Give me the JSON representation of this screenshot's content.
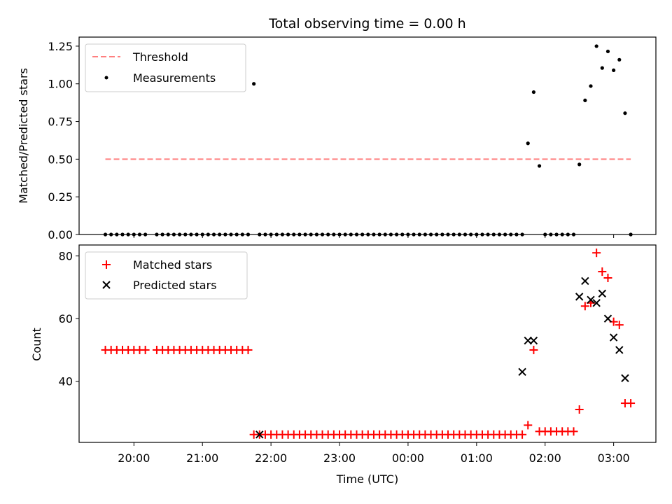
{
  "chart_data": [
    {
      "type": "scatter",
      "title": "Total observing time = 0.00 h",
      "ylabel": "Matched/Predicted stars",
      "ylim": [
        0,
        1.31
      ],
      "yticks": [
        "0.00",
        "0.25",
        "0.50",
        "0.75",
        "1.00",
        "1.25"
      ],
      "yticks_values": [
        0,
        0.25,
        0.5,
        0.75,
        1.0,
        1.25
      ],
      "legend_position": "upper-left",
      "threshold": {
        "name": "Threshold",
        "value": 0.5,
        "x_start": "19:35",
        "x_end": "03:15",
        "color": "#ff7f7f",
        "style": "dashed"
      },
      "series": [
        {
          "name": "Measurements",
          "color": "#000000",
          "marker": "dot",
          "x": [
            "19:35",
            "19:40",
            "19:45",
            "19:50",
            "19:55",
            "20:00",
            "20:05",
            "20:10",
            "20:20",
            "20:25",
            "20:30",
            "20:35",
            "20:40",
            "20:45",
            "20:50",
            "20:55",
            "21:00",
            "21:05",
            "21:10",
            "21:15",
            "21:20",
            "21:25",
            "21:30",
            "21:35",
            "21:40",
            "21:45",
            "21:50",
            "21:55",
            "22:00",
            "22:05",
            "22:10",
            "22:15",
            "22:20",
            "22:25",
            "22:30",
            "22:35",
            "22:40",
            "22:45",
            "22:50",
            "22:55",
            "23:00",
            "23:05",
            "23:10",
            "23:15",
            "23:20",
            "23:25",
            "23:30",
            "23:35",
            "23:40",
            "23:45",
            "23:50",
            "23:55",
            "00:00",
            "00:05",
            "00:10",
            "00:15",
            "00:20",
            "00:25",
            "00:30",
            "00:35",
            "00:40",
            "00:45",
            "00:50",
            "00:55",
            "01:00",
            "01:05",
            "01:10",
            "01:15",
            "01:20",
            "01:25",
            "01:30",
            "01:35",
            "01:40",
            "01:45",
            "01:50",
            "01:55",
            "02:00",
            "02:05",
            "02:10",
            "02:15",
            "02:20",
            "02:25",
            "02:30",
            "02:35",
            "02:40",
            "02:45",
            "02:50",
            "02:55",
            "03:00",
            "03:05",
            "03:10",
            "03:15"
          ],
          "y": [
            0,
            0,
            0,
            0,
            0,
            0,
            0,
            0,
            0,
            0,
            0,
            0,
            0,
            0,
            0,
            0,
            0,
            0,
            0,
            0,
            0,
            0,
            0,
            0,
            0,
            1.0,
            0,
            0,
            0,
            0,
            0,
            0,
            0,
            0,
            0,
            0,
            0,
            0,
            0,
            0,
            0,
            0,
            0,
            0,
            0,
            0,
            0,
            0,
            0,
            0,
            0,
            0,
            0,
            0,
            0,
            0,
            0,
            0,
            0,
            0,
            0,
            0,
            0,
            0,
            0,
            0,
            0,
            0,
            0,
            0,
            0,
            0,
            0,
            0.605,
            0.945,
            0.455,
            0,
            0,
            0,
            0,
            0,
            0,
            0.465,
            0.89,
            0.985,
            1.25,
            1.105,
            1.215,
            1.09,
            1.16,
            0.805,
            0
          ]
        }
      ]
    },
    {
      "type": "scatter",
      "xlabel": "Time (UTC)",
      "ylabel": "Count",
      "ylim": [
        20.5,
        83.5
      ],
      "yticks": [
        "40",
        "60",
        "80"
      ],
      "yticks_values": [
        40,
        60,
        80
      ],
      "xticks": [
        "20:00",
        "21:00",
        "22:00",
        "23:00",
        "00:00",
        "01:00",
        "02:00",
        "03:00"
      ],
      "xticks_values": [
        "20:00",
        "21:00",
        "22:00",
        "23:00",
        "00:00",
        "01:00",
        "02:00",
        "03:00"
      ],
      "legend_position": "upper-left",
      "series": [
        {
          "name": "Matched stars",
          "color": "#ff0000",
          "marker": "plus",
          "x": [
            "19:35",
            "19:40",
            "19:45",
            "19:50",
            "19:55",
            "20:00",
            "20:05",
            "20:10",
            "20:20",
            "20:25",
            "20:30",
            "20:35",
            "20:40",
            "20:45",
            "20:50",
            "20:55",
            "21:00",
            "21:05",
            "21:10",
            "21:15",
            "21:20",
            "21:25",
            "21:30",
            "21:35",
            "21:40",
            "21:45",
            "21:50",
            "21:55",
            "22:00",
            "22:05",
            "22:10",
            "22:15",
            "22:20",
            "22:25",
            "22:30",
            "22:35",
            "22:40",
            "22:45",
            "22:50",
            "22:55",
            "23:00",
            "23:05",
            "23:10",
            "23:15",
            "23:20",
            "23:25",
            "23:30",
            "23:35",
            "23:40",
            "23:45",
            "23:50",
            "23:55",
            "00:00",
            "00:05",
            "00:10",
            "00:15",
            "00:20",
            "00:25",
            "00:30",
            "00:35",
            "00:40",
            "00:45",
            "00:50",
            "00:55",
            "01:00",
            "01:05",
            "01:10",
            "01:15",
            "01:20",
            "01:25",
            "01:30",
            "01:35",
            "01:40",
            "01:45",
            "01:50",
            "01:55",
            "02:00",
            "02:05",
            "02:10",
            "02:15",
            "02:20",
            "02:25",
            "02:30",
            "02:35",
            "02:40",
            "02:45",
            "02:50",
            "02:55",
            "03:00",
            "03:05",
            "03:10",
            "03:15"
          ],
          "y": [
            50,
            50,
            50,
            50,
            50,
            50,
            50,
            50,
            50,
            50,
            50,
            50,
            50,
            50,
            50,
            50,
            50,
            50,
            50,
            50,
            50,
            50,
            50,
            50,
            50,
            23,
            23,
            23,
            23,
            23,
            23,
            23,
            23,
            23,
            23,
            23,
            23,
            23,
            23,
            23,
            23,
            23,
            23,
            23,
            23,
            23,
            23,
            23,
            23,
            23,
            23,
            23,
            23,
            23,
            23,
            23,
            23,
            23,
            23,
            23,
            23,
            23,
            23,
            23,
            23,
            23,
            23,
            23,
            23,
            23,
            23,
            23,
            23,
            26,
            50,
            24,
            24,
            24,
            24,
            24,
            24,
            24,
            31,
            64,
            65,
            81,
            75,
            73,
            59,
            58,
            33,
            33
          ]
        },
        {
          "name": "Predicted stars",
          "color": "#000000",
          "marker": "x",
          "x": [
            "21:50",
            "01:40",
            "01:45",
            "01:50",
            "02:30",
            "02:35",
            "02:40",
            "02:45",
            "02:50",
            "02:55",
            "03:00",
            "03:05",
            "03:10"
          ],
          "y": [
            23,
            43,
            53,
            53,
            67,
            72,
            66,
            65,
            68,
            60,
            54,
            50,
            41
          ]
        }
      ]
    }
  ]
}
